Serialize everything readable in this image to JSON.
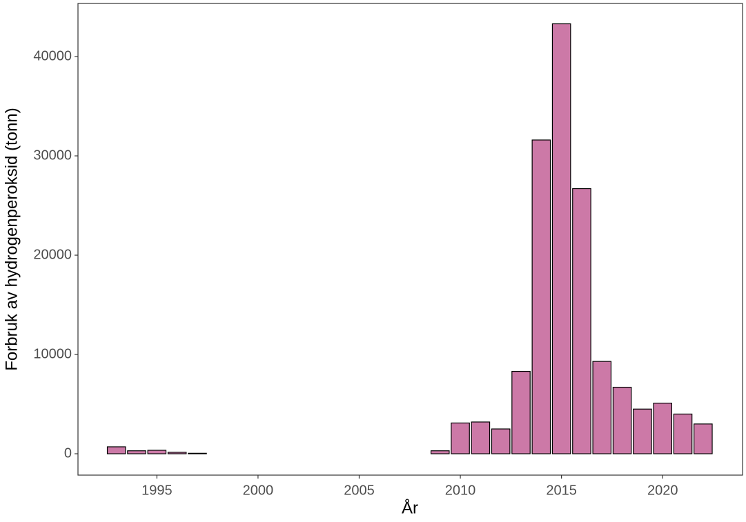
{
  "chart_data": {
    "type": "bar",
    "x_label": "År",
    "y_label": "Forbruk av hydrogenperoksid (tonn)",
    "x": [
      1993,
      1994,
      1995,
      1996,
      1997,
      2009,
      2010,
      2011,
      2012,
      2013,
      2014,
      2015,
      2016,
      2017,
      2018,
      2019,
      2020,
      2021,
      2022
    ],
    "values": [
      700,
      300,
      350,
      150,
      50,
      300,
      3100,
      3200,
      2500,
      8300,
      31600,
      43300,
      26700,
      9300,
      6700,
      4500,
      5100,
      4000,
      3000
    ],
    "color": "#cc79a7",
    "xlim": [
      1991.1,
      2023.95
    ],
    "xticks": [
      1995,
      2000,
      2005,
      2010,
      2015,
      2020
    ],
    "ylim": [
      -2150,
      45350
    ],
    "yticks": [
      0,
      10000,
      20000,
      30000,
      40000
    ]
  }
}
